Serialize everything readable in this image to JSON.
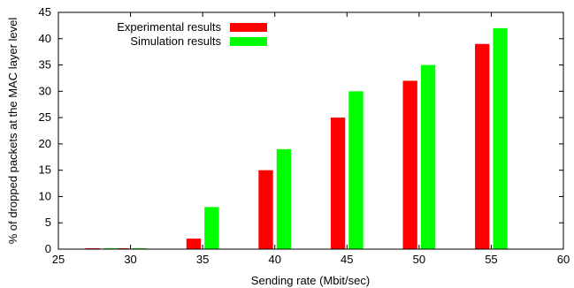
{
  "chart_data": {
    "type": "bar",
    "title": "",
    "xlabel": "Sending rate (Mbit/sec)",
    "ylabel": "% of dropped packets at the MAC layer level",
    "xlim": [
      25,
      60
    ],
    "ylim": [
      0,
      45
    ],
    "xticks": [
      25,
      30,
      35,
      40,
      45,
      50,
      55,
      60
    ],
    "yticks": [
      0,
      5,
      10,
      15,
      20,
      25,
      30,
      35,
      40,
      45
    ],
    "categories": [
      28,
      30,
      35,
      40,
      45,
      50,
      55
    ],
    "series": [
      {
        "name": "Experimental results",
        "color": "#ff0000",
        "values": [
          0,
          0,
          2,
          15,
          25,
          32,
          39
        ]
      },
      {
        "name": "Simulation results",
        "color": "#00ff00",
        "values": [
          0,
          0,
          8,
          19,
          30,
          35,
          42
        ]
      }
    ],
    "legend_position": "top-left",
    "grid": false
  }
}
